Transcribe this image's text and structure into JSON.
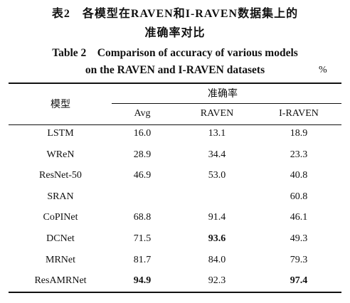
{
  "caption": {
    "zh_lines": [
      "表2　各模型在RAVEN和I-RAVEN数据集上的",
      "准确率对比"
    ],
    "en_lines": [
      "Table 2　Comparison of accuracy of various models",
      "on the RAVEN and I-RAVEN datasets"
    ],
    "unit": "%"
  },
  "table": {
    "header": {
      "model": "模型",
      "group": "准确率",
      "columns": [
        "Avg",
        "RAVEN",
        "I-RAVEN"
      ]
    },
    "rows": [
      [
        "LSTM",
        "16.0",
        "13.1",
        "18.9"
      ],
      [
        "WReN",
        "28.9",
        "34.4",
        "23.3"
      ],
      [
        "ResNet-50",
        "46.9",
        "53.0",
        "40.8"
      ],
      [
        "SRAN",
        null,
        null,
        "60.8"
      ],
      [
        "CoPINet",
        "68.8",
        "91.4",
        "46.1"
      ],
      [
        "DCNet",
        "71.5",
        "93.6",
        "49.3"
      ],
      [
        "MRNet",
        "81.7",
        "84.0",
        "79.3"
      ],
      [
        "ResAMRNet",
        "94.9",
        "92.3",
        "97.4"
      ]
    ],
    "bold": [
      [
        5,
        2
      ],
      [
        7,
        1
      ],
      [
        7,
        3
      ]
    ]
  }
}
